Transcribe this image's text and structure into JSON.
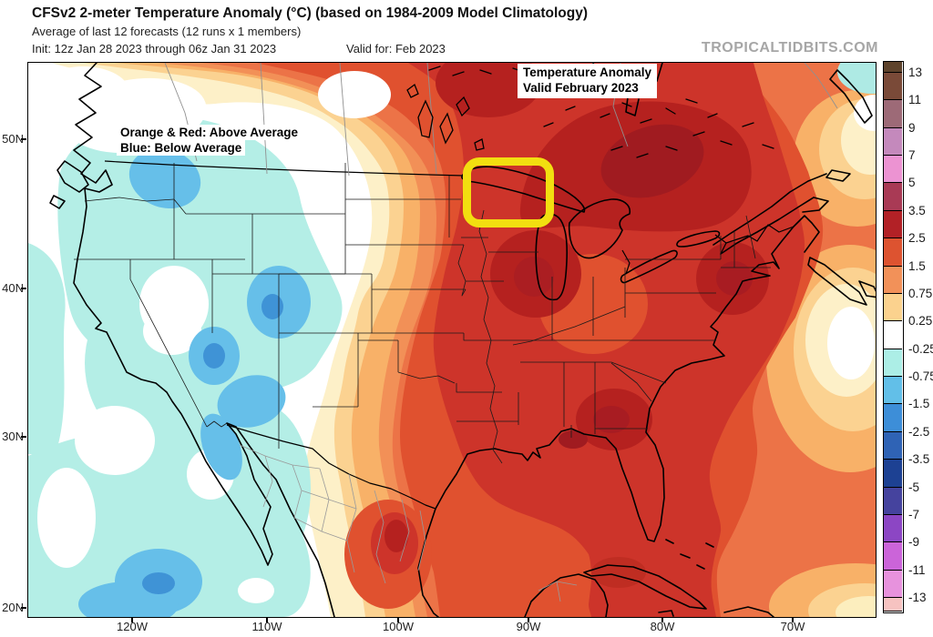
{
  "header": {
    "title": "CFSv2 2-meter Temperature Anomaly (°C) (based on 1984-2009 Model Climatology)",
    "subtitle": "Average of last 12 forecasts (12 runs x 1 members)",
    "init_line": "Init: 12z Jan 28 2023 through 06z Jan 31 2023",
    "valid_line": "Valid for: Feb 2023",
    "watermark": "TROPICALTIDBITS.COM"
  },
  "map_overlay": {
    "annotation_line1": "Temperature Anomaly",
    "annotation_line2": "Valid February 2023",
    "legend_line1": "Orange & Red:  Above Average",
    "legend_line2": "Blue:  Below Average",
    "highlight_color": "#f2df10"
  },
  "axes": {
    "lon_labels": [
      "120W",
      "110W",
      "100W",
      "90W",
      "80W",
      "70W"
    ],
    "lat_labels": [
      "50N",
      "40N",
      "30N",
      "20N"
    ]
  },
  "colorbar": {
    "unit": "°C anomaly",
    "tick_labels": [
      "13",
      "11",
      "9",
      "7",
      "5",
      "3.5",
      "2.5",
      "1.5",
      "0.75",
      "0.25",
      "-0.25",
      "-0.75",
      "-1.5",
      "-2.5",
      "-3.5",
      "-5",
      "-7",
      "-9",
      "-11",
      "-13"
    ],
    "band_colors": [
      "#5e432c",
      "#7a4a38",
      "#9d6a77",
      "#c489bc",
      "#ec93d2",
      "#a93a55",
      "#b22126",
      "#dd5330",
      "#f29159",
      "#fbd28e",
      "#ffffff",
      "#aceee6",
      "#62bfe8",
      "#3d8ed8",
      "#2f63b5",
      "#1d4193",
      "#45439e",
      "#8c46c4",
      "#cb64d9",
      "#e792dd",
      "#f6c3c1"
    ]
  }
}
